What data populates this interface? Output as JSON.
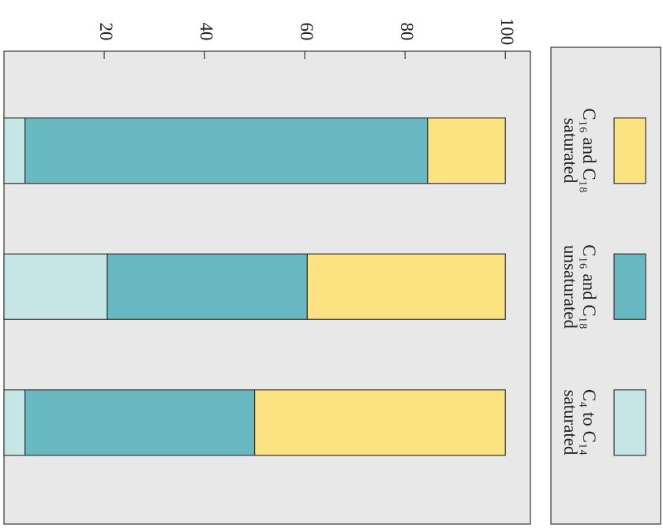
{
  "chart_data": {
    "type": "stacked-bar",
    "categories": [
      null,
      null,
      null
    ],
    "series": [
      {
        "name": "C₄ to C₁₄ saturated",
        "color": "#c6e6e6",
        "values": [
          4.2,
          20.6,
          4.2
        ]
      },
      {
        "name": "C₁₆ and C₁₈ unsaturated",
        "color": "#67b8c0",
        "values": [
          80.3,
          39.9,
          45.8
        ]
      },
      {
        "name": "C₁₆ and C₁₈ saturated",
        "color": "#fde281",
        "values": [
          15.5,
          39.5,
          50
        ]
      }
    ],
    "ylim": [
      0,
      105
    ],
    "yticks": [
      20,
      40,
      60,
      80,
      100
    ]
  }
}
